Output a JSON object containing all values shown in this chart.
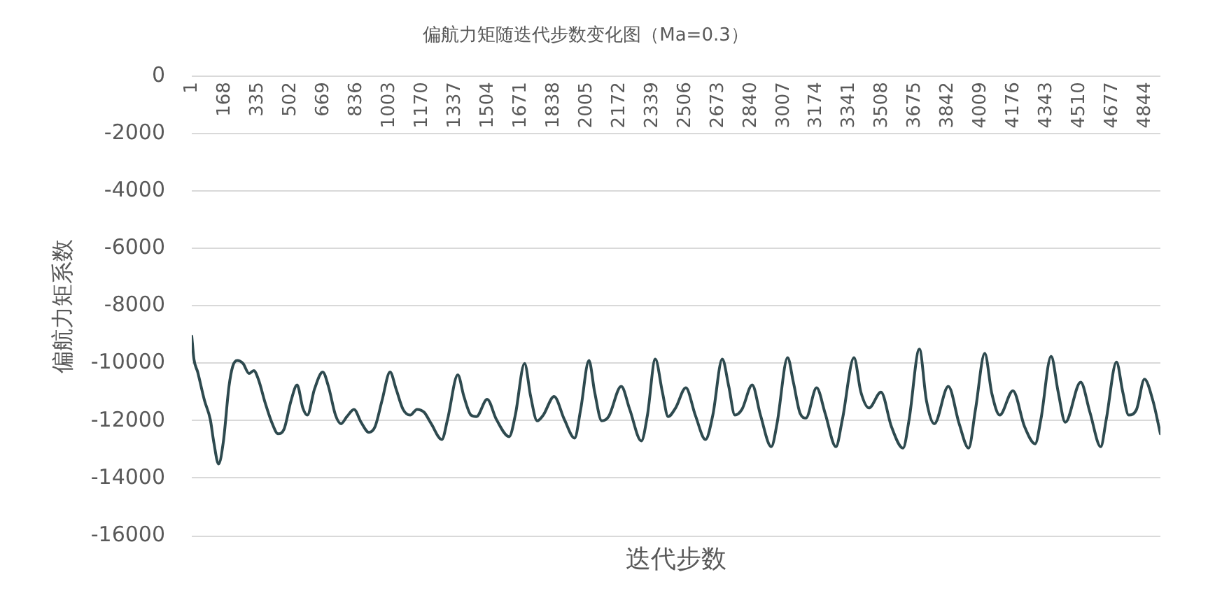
{
  "chart_data": {
    "type": "line",
    "title": "偏航力矩随迭代步数变化图（Ma=0.3）",
    "xlabel": "迭代步数",
    "ylabel": "偏航力矩系数",
    "x": [
      1,
      12,
      31,
      66,
      95,
      113,
      137,
      161,
      190,
      209,
      232,
      261,
      292,
      316,
      339,
      375,
      410,
      439,
      469,
      505,
      536,
      565,
      588,
      624,
      666,
      695,
      731,
      759,
      789,
      825,
      861,
      901,
      932,
      967,
      1008,
      1039,
      1074,
      1110,
      1145,
      1181,
      1217,
      1271,
      1300,
      1352,
      1383,
      1419,
      1447,
      1501,
      1548,
      1613,
      1644,
      1691,
      1722,
      1755,
      1786,
      1841,
      1893,
      1945,
      1976,
      2018,
      2047,
      2083,
      2118,
      2182,
      2225,
      2284,
      2315,
      2355,
      2391,
      2420,
      2458,
      2510,
      2558,
      2610,
      2647,
      2695,
      2728,
      2759,
      2795,
      2847,
      2889,
      2944,
      2973,
      3027,
      3056,
      3091,
      3120,
      3174,
      3218,
      3272,
      3305,
      3364,
      3399,
      3440,
      3501,
      3554,
      3613,
      3644,
      3696,
      3732,
      3772,
      3843,
      3898,
      3946,
      3981,
      4028,
      4064,
      4104,
      4171,
      4230,
      4284,
      4313,
      4365,
      4401,
      4437,
      4515,
      4562,
      4617,
      4645,
      4697,
      4729,
      4759,
      4799,
      4839,
      4882,
      4920
    ],
    "series": [
      {
        "color": "#2e4a4f",
        "values": [
          -9050,
          -9850,
          -10300,
          -11300,
          -11950,
          -12750,
          -13500,
          -12750,
          -10800,
          -10100,
          -9900,
          -10000,
          -10350,
          -10250,
          -10550,
          -11400,
          -12100,
          -12450,
          -12300,
          -11300,
          -10750,
          -11550,
          -11800,
          -10900,
          -10300,
          -10800,
          -11800,
          -12100,
          -11850,
          -11600,
          -12050,
          -12400,
          -12200,
          -11300,
          -10300,
          -10900,
          -11600,
          -11800,
          -11600,
          -11700,
          -12100,
          -12650,
          -11950,
          -10400,
          -11150,
          -11800,
          -11850,
          -11250,
          -11950,
          -12550,
          -11800,
          -10000,
          -11150,
          -12000,
          -11800,
          -11150,
          -11950,
          -12600,
          -11600,
          -9900,
          -11000,
          -12000,
          -11850,
          -10800,
          -11600,
          -12700,
          -11800,
          -9850,
          -11000,
          -11850,
          -11550,
          -10850,
          -11800,
          -12650,
          -11800,
          -9850,
          -10800,
          -11800,
          -11600,
          -10750,
          -11800,
          -12900,
          -12100,
          -9800,
          -10650,
          -11750,
          -11900,
          -10850,
          -11750,
          -12900,
          -11950,
          -9800,
          -11000,
          -11550,
          -11000,
          -12200,
          -12950,
          -11950,
          -9500,
          -11300,
          -12100,
          -10800,
          -12100,
          -12950,
          -11600,
          -9650,
          -11050,
          -11800,
          -10950,
          -12200,
          -12800,
          -11950,
          -9750,
          -11000,
          -12050,
          -10650,
          -11700,
          -12900,
          -11950,
          -9950,
          -11000,
          -11800,
          -11600,
          -10550,
          -11300,
          -12450
        ]
      }
    ],
    "xlim": [
      1,
      4920
    ],
    "xticks": [
      1,
      168,
      335,
      502,
      669,
      836,
      1003,
      1170,
      1337,
      1504,
      1671,
      1838,
      2005,
      2172,
      2339,
      2506,
      2673,
      2840,
      3007,
      3174,
      3341,
      3508,
      3675,
      3842,
      4009,
      4176,
      4343,
      4510,
      4677,
      4844
    ],
    "ylim": [
      -16000,
      0
    ],
    "yticks": [
      -16000,
      -14000,
      -12000,
      -10000,
      -8000,
      -6000,
      -4000,
      -2000,
      0
    ],
    "grid": "y",
    "legend": false,
    "marker": "none",
    "line_style": "solid"
  }
}
